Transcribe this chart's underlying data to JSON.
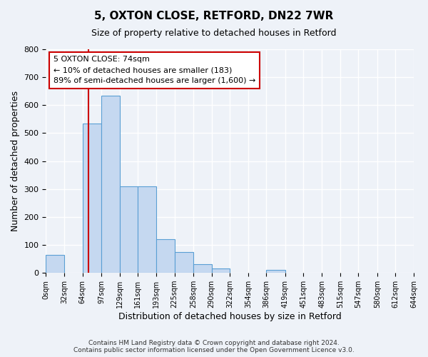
{
  "title": "5, OXTON CLOSE, RETFORD, DN22 7WR",
  "subtitle": "Size of property relative to detached houses in Retford",
  "xlabel": "Distribution of detached houses by size in Retford",
  "ylabel": "Number of detached properties",
  "bar_left_edges": [
    0,
    32,
    64,
    97,
    129,
    161,
    193,
    225,
    258,
    290,
    322,
    354,
    386,
    419,
    451,
    483,
    515,
    547,
    580,
    612
  ],
  "bar_widths": [
    32,
    32,
    33,
    32,
    32,
    32,
    32,
    33,
    32,
    32,
    32,
    32,
    33,
    32,
    32,
    32,
    32,
    33,
    32,
    32
  ],
  "bar_heights": [
    65,
    0,
    535,
    635,
    310,
    310,
    120,
    75,
    30,
    15,
    0,
    0,
    10,
    0,
    0,
    0,
    0,
    0,
    0,
    0
  ],
  "tick_labels": [
    "0sqm",
    "32sqm",
    "64sqm",
    "97sqm",
    "129sqm",
    "161sqm",
    "193sqm",
    "225sqm",
    "258sqm",
    "290sqm",
    "322sqm",
    "354sqm",
    "386sqm",
    "419sqm",
    "451sqm",
    "483sqm",
    "515sqm",
    "547sqm",
    "580sqm",
    "612sqm",
    "644sqm"
  ],
  "ylim": [
    0,
    800
  ],
  "yticks": [
    0,
    100,
    200,
    300,
    400,
    500,
    600,
    700,
    800
  ],
  "bar_color": "#c5d8f0",
  "bar_edge_color": "#5a9fd4",
  "red_line_x": 74,
  "annotation_title": "5 OXTON CLOSE: 74sqm",
  "annotation_line1": "← 10% of detached houses are smaller (183)",
  "annotation_line2": "89% of semi-detached houses are larger (1,600) →",
  "annotation_box_color": "#ffffff",
  "annotation_box_edge": "#cc0000",
  "red_line_color": "#cc0000",
  "bg_color": "#eef2f8",
  "grid_color": "#ffffff",
  "footer1": "Contains HM Land Registry data © Crown copyright and database right 2024.",
  "footer2": "Contains public sector information licensed under the Open Government Licence v3.0."
}
